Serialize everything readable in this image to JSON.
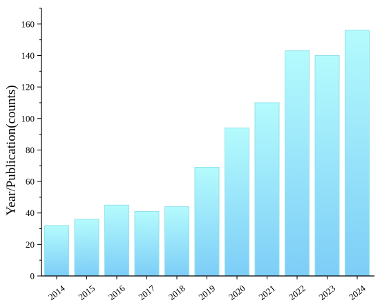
{
  "chart_data": {
    "type": "bar",
    "categories": [
      "2014",
      "2015",
      "2016",
      "2017",
      "2018",
      "2019",
      "2020",
      "2021",
      "2022",
      "2023",
      "2024"
    ],
    "values": [
      32,
      36,
      45,
      41,
      44,
      69,
      94,
      110,
      143,
      140,
      156
    ],
    "title": "",
    "xlabel": "",
    "ylabel": "Year/Publication(counts)",
    "ylim": [
      0,
      170
    ],
    "yticks": [
      0,
      20,
      40,
      60,
      80,
      100,
      120,
      140,
      160
    ],
    "grid": false,
    "legend": "none",
    "colors": {
      "bar_top": "#b4fbfd",
      "bar_bottom": "#7dcdf7",
      "bar_edge": "#8fe3ea",
      "axis": "#000000"
    }
  }
}
